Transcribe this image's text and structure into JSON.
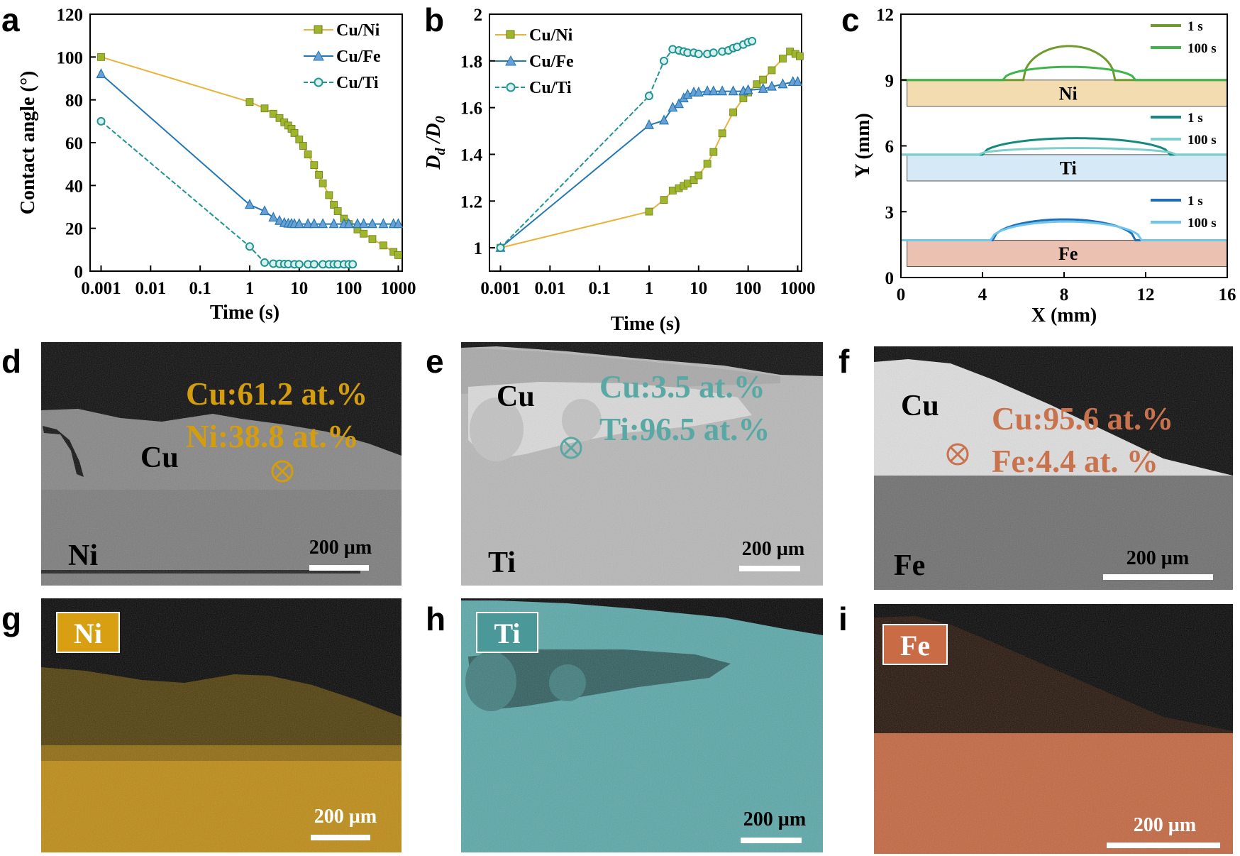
{
  "panel_labels": {
    "a": "a",
    "b": "b",
    "c": "c",
    "d": "d",
    "e": "e",
    "f": "f",
    "g": "g",
    "h": "h",
    "i": "i"
  },
  "colors": {
    "ni": "#9fb52c",
    "ni_line": "#e8b33a",
    "fe": "#2277b4",
    "ti": "#1f9490",
    "ni_dark": "#6f9b2e",
    "ni_light": "#3db54a",
    "ti_dark": "#148a7e",
    "ti_light": "#7fcfcb",
    "fe_dark": "#1e6fb5",
    "fe_light": "#6ec5ee",
    "ni_sub": "#f3ddb0",
    "ti_sub": "#d6e9f7",
    "fe_sub": "#ebc2b1",
    "ann_ni": "#d49d10",
    "ann_ti": "#5aa8a4",
    "ann_fe": "#c9734e"
  },
  "chart_data": [
    {
      "id": "a",
      "type": "line",
      "xscale": "log",
      "xlabel": "Time (s)",
      "ylabel": "Contact angle (°)",
      "xlim": [
        0.0006,
        1200
      ],
      "ylim": [
        0,
        120
      ],
      "xticks": [
        0.001,
        0.01,
        0.1,
        1,
        10,
        100,
        1000
      ],
      "xtick_labels": [
        "0.001",
        "0.01",
        "0.1",
        "1",
        "10",
        "100",
        "1000"
      ],
      "yticks": [
        0,
        20,
        40,
        60,
        80,
        100,
        120
      ],
      "ytick_labels": [
        "0",
        "20",
        "40",
        "60",
        "80",
        "100",
        "120"
      ],
      "legend_position": "top-right",
      "series": [
        {
          "name": "Cu/Ni",
          "color_key": "ni",
          "marker": "square",
          "x": [
            0.001,
            1,
            2,
            3,
            4,
            5,
            6,
            7,
            8,
            10,
            12,
            15,
            20,
            25,
            30,
            40,
            50,
            60,
            80,
            100,
            150,
            200,
            300,
            500,
            800,
            1000
          ],
          "y": [
            100,
            79,
            76,
            73.5,
            71.5,
            69.5,
            68,
            66.5,
            64.5,
            61.5,
            58.5,
            54.5,
            49.5,
            45,
            41,
            35.5,
            31,
            28,
            24.5,
            22,
            19.5,
            17.5,
            15,
            12,
            9,
            7.5
          ]
        },
        {
          "name": "Cu/Fe",
          "color_key": "fe",
          "marker": "triangle",
          "x": [
            0.001,
            1,
            2,
            3,
            4,
            5,
            6,
            7,
            8,
            10,
            15,
            20,
            30,
            50,
            80,
            100,
            150,
            200,
            300,
            500,
            800,
            1000
          ],
          "y": [
            92,
            31,
            28,
            25,
            23.5,
            22.5,
            22.2,
            22.1,
            22,
            22,
            22,
            22,
            22,
            22,
            22,
            22,
            22,
            22,
            22,
            22,
            22,
            22
          ]
        },
        {
          "name": "Cu/Ti",
          "color_key": "ti",
          "marker": "circle",
          "x": [
            0.001,
            1,
            2,
            3,
            4,
            5,
            6,
            8,
            10,
            15,
            20,
            30,
            40,
            50,
            60,
            80,
            100,
            120
          ],
          "y": [
            70,
            11.5,
            4,
            3.5,
            3.4,
            3.3,
            3.3,
            3.2,
            3.2,
            3.2,
            3.2,
            3.2,
            3.2,
            3.2,
            3.2,
            3.2,
            3.2,
            3.2
          ]
        }
      ]
    },
    {
      "id": "b",
      "type": "line",
      "xscale": "log",
      "xlabel": "Time (s)",
      "ylabel_main": "D",
      "ylabel_sub1": "d",
      "ylabel_mid": " /D",
      "ylabel_sub2": "0",
      "xlim": [
        0.0006,
        1200
      ],
      "ylim": [
        0.9,
        2.0
      ],
      "xticks": [
        0.001,
        0.01,
        0.1,
        1,
        10,
        100,
        1000
      ],
      "xtick_labels": [
        "0.001",
        "0.01",
        "0.1",
        "1",
        "10",
        "100",
        "1000"
      ],
      "yticks": [
        1,
        1.2,
        1.4,
        1.6,
        1.8,
        2
      ],
      "ytick_labels": [
        "1",
        "1.2",
        "1.4",
        "1.6",
        "1.8",
        "2"
      ],
      "legend_position": "top-left",
      "series": [
        {
          "name": "Cu/Ni",
          "color_key": "ni",
          "marker": "square",
          "x": [
            0.001,
            1,
            2,
            3,
            4,
            5,
            6,
            8,
            10,
            15,
            20,
            30,
            50,
            80,
            100,
            150,
            200,
            300,
            500,
            700,
            900,
            1100
          ],
          "y": [
            1.0,
            1.155,
            1.205,
            1.245,
            1.255,
            1.265,
            1.275,
            1.29,
            1.31,
            1.36,
            1.41,
            1.49,
            1.58,
            1.64,
            1.665,
            1.7,
            1.72,
            1.76,
            1.81,
            1.84,
            1.83,
            1.82
          ]
        },
        {
          "name": "Cu/Fe",
          "color_key": "fe",
          "marker": "triangle",
          "x": [
            0.001,
            1,
            2,
            3,
            4,
            5,
            6,
            8,
            10,
            15,
            20,
            30,
            50,
            80,
            100,
            200,
            300,
            500,
            800,
            1000
          ],
          "y": [
            1.0,
            1.525,
            1.545,
            1.6,
            1.615,
            1.64,
            1.655,
            1.665,
            1.665,
            1.67,
            1.67,
            1.67,
            1.67,
            1.67,
            1.675,
            1.68,
            1.69,
            1.7,
            1.71,
            1.71
          ]
        },
        {
          "name": "Cu/Ti",
          "color_key": "ti",
          "marker": "circle",
          "x": [
            0.001,
            1,
            2,
            3,
            4,
            5,
            6,
            8,
            10,
            15,
            20,
            30,
            40,
            50,
            60,
            80,
            100,
            120
          ],
          "y": [
            1.0,
            1.65,
            1.8,
            1.85,
            1.845,
            1.84,
            1.835,
            1.835,
            1.83,
            1.83,
            1.835,
            1.84,
            1.845,
            1.855,
            1.86,
            1.87,
            1.88,
            1.885
          ]
        }
      ]
    },
    {
      "id": "c",
      "type": "line",
      "xlabel": "X (mm)",
      "ylabel": "Y (mm)",
      "xlim": [
        0,
        16
      ],
      "ylim": [
        0,
        12
      ],
      "xticks": [
        0,
        4,
        8,
        12,
        16
      ],
      "xtick_labels": [
        "0",
        "4",
        "8",
        "12",
        "16"
      ],
      "yticks": [
        0,
        3,
        6,
        9,
        12
      ],
      "ytick_labels": [
        "0",
        "3",
        "6",
        "9",
        "12"
      ],
      "substrates": [
        {
          "name": "Ni",
          "y0": 7.8,
          "y1": 9.0,
          "color_key": "ni_sub"
        },
        {
          "name": "Ti",
          "y0": 4.4,
          "y1": 5.6,
          "color_key": "ti_sub"
        },
        {
          "name": "Fe",
          "y0": 0.5,
          "y1": 1.7,
          "color_key": "fe_sub"
        }
      ],
      "series": [
        {
          "name": "1 s",
          "group": "Ni",
          "color_key": "ni_dark",
          "base": 9.0,
          "peak": 10.55,
          "x0": 6.0,
          "x1": 10.5
        },
        {
          "name": "100 s",
          "group": "Ni",
          "color_key": "ni_light",
          "base": 9.0,
          "peak": 9.6,
          "x0": 5.0,
          "x1": 11.5
        },
        {
          "name": "1 s",
          "group": "Ti",
          "color_key": "ti_dark",
          "base": 5.6,
          "peak": 6.35,
          "x0": 4.0,
          "x1": 13.2
        },
        {
          "name": "100 s",
          "group": "Ti",
          "color_key": "ti_light",
          "base": 5.6,
          "peak": 5.9,
          "x0": 3.8,
          "x1": 13.5
        },
        {
          "name": "1 s",
          "group": "Fe",
          "color_key": "fe_dark",
          "base": 1.7,
          "peak": 2.65,
          "x0": 4.5,
          "x1": 11.5
        },
        {
          "name": "100 s",
          "group": "Fe",
          "color_key": "fe_light",
          "base": 1.7,
          "peak": 2.55,
          "x0": 4.4,
          "x1": 11.8
        }
      ]
    }
  ],
  "micrographs": {
    "d": {
      "cu_label": "Cu",
      "substrate_label": "Ni",
      "comp1": "Cu:61.2 at.%",
      "comp2": "Ni:38.8 at.%",
      "scale": "200 µm"
    },
    "e": {
      "cu_label": "Cu",
      "substrate_label": "Ti",
      "comp1": "Cu:3.5 at.%",
      "comp2": "Ti:96.5 at.%",
      "scale": "200 µm"
    },
    "f": {
      "cu_label": "Cu",
      "substrate_label": "Fe",
      "comp1": "Cu:95.6 at.%",
      "comp2": "Fe:4.4 at. %",
      "scale": "200 µm"
    },
    "g": {
      "element": "Ni",
      "scale": "200 µm"
    },
    "h": {
      "element": "Ti",
      "scale": "200 µm"
    },
    "i": {
      "element": "Fe",
      "scale": "200 µm"
    }
  }
}
